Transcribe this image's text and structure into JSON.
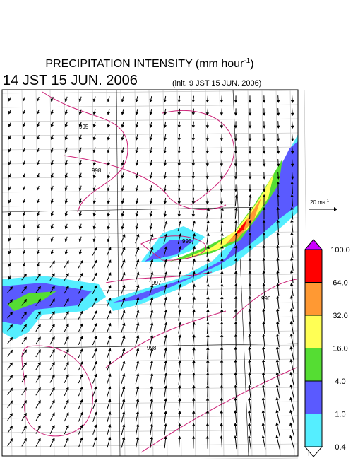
{
  "header": {
    "title": "PRECIPITATION INTENSITY (mm hour",
    "title_exponent": "-1",
    "title_close": ")",
    "valid_time": "14 JST 15 JUN. 2006",
    "init_time": "(init. 9 JST 15 JUN. 2006)"
  },
  "vector_scale": {
    "label": "20 ms",
    "exponent": "-1"
  },
  "colorbar": {
    "labels": [
      "100.0",
      "64.0",
      "32.0",
      "16.0",
      "4.0",
      "1.0",
      "0.4"
    ],
    "colors": [
      "#cc00ff",
      "#ff0000",
      "#ff9933",
      "#ffff55",
      "#55dd33",
      "#5a5aff",
      "#55eeff",
      "#ffffff"
    ]
  },
  "contour_labels": [
    "995",
    "998",
    "995",
    "997",
    "996",
    "998"
  ]
}
